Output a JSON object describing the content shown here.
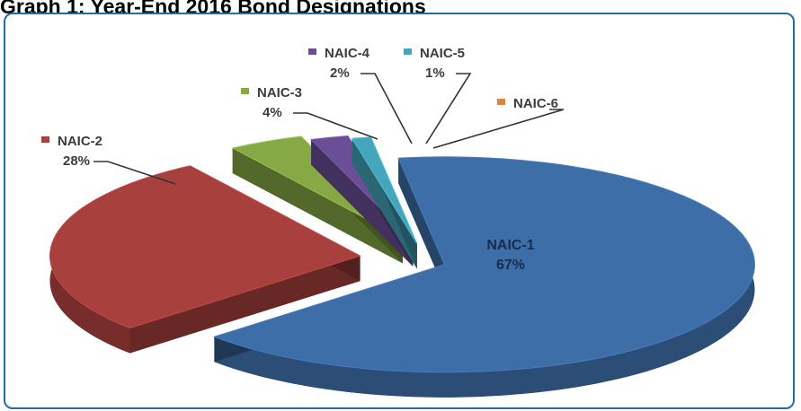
{
  "heading": "Graph 1: Year-End 2016 Bond Designations",
  "chart_data": {
    "type": "pie",
    "title": "Graph 1: Year-End 2016 Bond Designations",
    "categories": [
      "NAIC-1",
      "NAIC-2",
      "NAIC-3",
      "NAIC-4",
      "NAIC-5",
      "NAIC-6"
    ],
    "values": [
      67,
      28,
      4,
      2,
      1,
      0
    ],
    "value_labels": [
      "67%",
      "28%",
      "4%",
      "2%",
      "1%",
      ""
    ],
    "colors": [
      "#3d6ea8",
      "#a8403e",
      "#86a845",
      "#6b4f96",
      "#44a5bb",
      "#e0843a"
    ],
    "exploded": true,
    "style": "3d"
  }
}
